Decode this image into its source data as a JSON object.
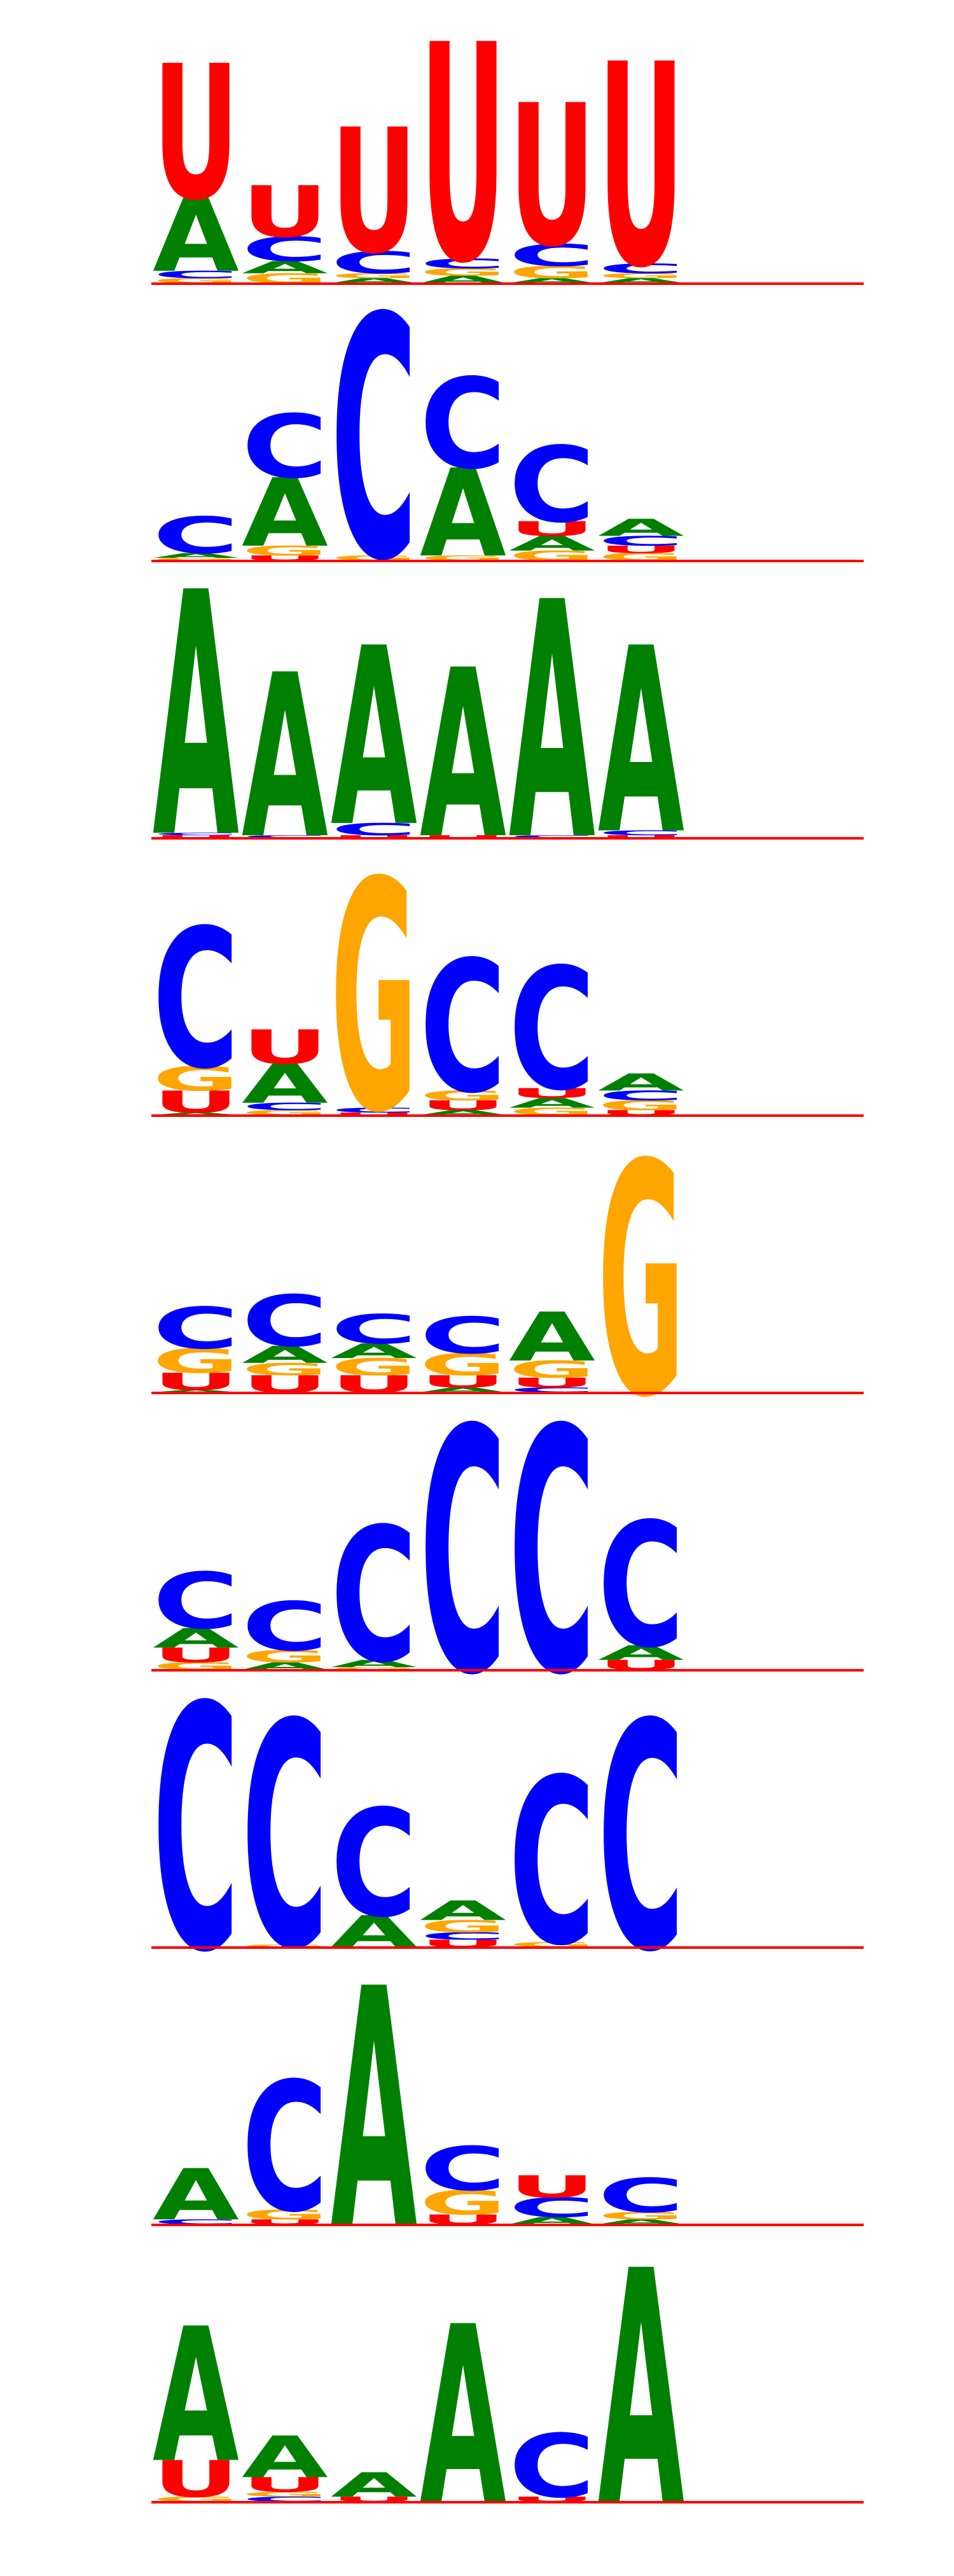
{
  "colors": {
    "A": "#008000",
    "C": "#0000FF",
    "G": "#FFA500",
    "U": "#FF0000",
    "baseline": "#FF0000"
  },
  "logos": [
    {
      "columns": [
        [
          [
            "G",
            0.02
          ],
          [
            "C",
            0.03
          ],
          [
            "A",
            0.3
          ],
          [
            "U",
            0.55
          ]
        ],
        [
          [
            "G",
            0.04
          ],
          [
            "A",
            0.05
          ],
          [
            "C",
            0.1
          ],
          [
            "U",
            0.21
          ]
        ],
        [
          [
            "A",
            0.02
          ],
          [
            "G",
            0.02
          ],
          [
            "C",
            0.09
          ],
          [
            "U",
            0.51
          ]
        ],
        [
          [
            "A",
            0.03
          ],
          [
            "G",
            0.03
          ],
          [
            "C",
            0.04
          ],
          [
            "U",
            0.89
          ]
        ],
        [
          [
            "A",
            0.02
          ],
          [
            "G",
            0.05
          ],
          [
            "C",
            0.09
          ],
          [
            "U",
            0.58
          ]
        ],
        [
          [
            "A",
            0.02
          ],
          [
            "G",
            0.02
          ],
          [
            "C",
            0.04
          ],
          [
            "U",
            0.83
          ]
        ]
      ]
    },
    {
      "columns": [
        [
          [
            "G",
            0.01
          ],
          [
            "A",
            0.02
          ],
          [
            "C",
            0.15
          ]
        ],
        [
          [
            "U",
            0.02
          ],
          [
            "G",
            0.04
          ],
          [
            "A",
            0.28
          ],
          [
            "C",
            0.26
          ]
        ],
        [
          [
            "G",
            0.02
          ],
          [
            "C",
            0.99
          ]
        ],
        [
          [
            "G",
            0.02
          ],
          [
            "A",
            0.36
          ],
          [
            "C",
            0.37
          ]
        ],
        [
          [
            "G",
            0.04
          ],
          [
            "A",
            0.06
          ],
          [
            "U",
            0.06
          ],
          [
            "C",
            0.31
          ]
        ],
        [
          [
            "G",
            0.03
          ],
          [
            "U",
            0.03
          ],
          [
            "C",
            0.04
          ],
          [
            "A",
            0.07
          ]
        ]
      ]
    },
    {
      "columns": [
        [
          [
            "U",
            0.01
          ],
          [
            "C",
            0.01
          ],
          [
            "A",
            1.0
          ]
        ],
        [
          [
            "C",
            0.01
          ],
          [
            "A",
            0.67
          ]
        ],
        [
          [
            "U",
            0.01
          ],
          [
            "C",
            0.05
          ],
          [
            "A",
            0.73
          ]
        ],
        [
          [
            "U",
            0.01
          ],
          [
            "A",
            0.69
          ]
        ],
        [
          [
            "C",
            0.01
          ],
          [
            "A",
            0.97
          ]
        ],
        [
          [
            "U",
            0.01
          ],
          [
            "C",
            0.02
          ],
          [
            "A",
            0.76
          ]
        ]
      ]
    },
    {
      "columns": [
        [
          [
            "A",
            0.01
          ],
          [
            "U",
            0.09
          ],
          [
            "G",
            0.1
          ],
          [
            "C",
            0.57
          ]
        ],
        [
          [
            "G",
            0.02
          ],
          [
            "C",
            0.03
          ],
          [
            "A",
            0.16
          ],
          [
            "U",
            0.14
          ]
        ],
        [
          [
            "U",
            0.01
          ],
          [
            "C",
            0.02
          ],
          [
            "G",
            0.94
          ]
        ],
        [
          [
            "A",
            0.02
          ],
          [
            "U",
            0.04
          ],
          [
            "G",
            0.04
          ],
          [
            "C",
            0.54
          ]
        ],
        [
          [
            "G",
            0.03
          ],
          [
            "A",
            0.04
          ],
          [
            "U",
            0.04
          ],
          [
            "C",
            0.5
          ]
        ],
        [
          [
            "U",
            0.02
          ],
          [
            "G",
            0.04
          ],
          [
            "C",
            0.04
          ],
          [
            "A",
            0.07
          ]
        ]
      ]
    },
    {
      "columns": [
        [
          [
            "A",
            0.01
          ],
          [
            "U",
            0.07
          ],
          [
            "G",
            0.1
          ],
          [
            "C",
            0.17
          ]
        ],
        [
          [
            "U",
            0.07
          ],
          [
            "G",
            0.05
          ],
          [
            "A",
            0.07
          ],
          [
            "C",
            0.21
          ]
        ],
        [
          [
            "U",
            0.07
          ],
          [
            "G",
            0.07
          ],
          [
            "A",
            0.06
          ],
          [
            "C",
            0.12
          ]
        ],
        [
          [
            "A",
            0.02
          ],
          [
            "U",
            0.05
          ],
          [
            "G",
            0.09
          ],
          [
            "C",
            0.15
          ]
        ],
        [
          [
            "C",
            0.02
          ],
          [
            "U",
            0.04
          ],
          [
            "G",
            0.07
          ],
          [
            "A",
            0.2
          ]
        ],
        [
          [
            "G",
            0.95
          ]
        ]
      ]
    },
    {
      "columns": [
        [
          [
            "G",
            0.03
          ],
          [
            "U",
            0.06
          ],
          [
            "A",
            0.08
          ],
          [
            "C",
            0.23
          ]
        ],
        [
          [
            "A",
            0.03
          ],
          [
            "G",
            0.05
          ],
          [
            "C",
            0.2
          ]
        ],
        [
          [
            "G",
            0.01
          ],
          [
            "A",
            0.03
          ],
          [
            "C",
            0.55
          ]
        ],
        [
          [
            "C",
            1.0
          ]
        ],
        [
          [
            "C",
            1.0
          ]
        ],
        [
          [
            "U",
            0.04
          ],
          [
            "A",
            0.06
          ],
          [
            "C",
            0.51
          ]
        ]
      ]
    },
    {
      "columns": [
        [
          [
            "C",
            1.0
          ]
        ],
        [
          [
            "G",
            0.01
          ],
          [
            "C",
            0.92
          ]
        ],
        [
          [
            "A",
            0.13
          ],
          [
            "C",
            0.44
          ]
        ],
        [
          [
            "U",
            0.03
          ],
          [
            "C",
            0.03
          ],
          [
            "G",
            0.05
          ],
          [
            "A",
            0.08
          ]
        ],
        [
          [
            "G",
            0.02
          ],
          [
            "C",
            0.68
          ]
        ],
        [
          [
            "C",
            0.93
          ]
        ]
      ]
    },
    {
      "columns": [
        [
          [
            "C",
            0.02
          ],
          [
            "A",
            0.21
          ]
        ],
        [
          [
            "U",
            0.02
          ],
          [
            "G",
            0.04
          ],
          [
            "C",
            0.53
          ]
        ],
        [
          [
            "A",
            0.98
          ]
        ],
        [
          [
            "U",
            0.04
          ],
          [
            "G",
            0.1
          ],
          [
            "C",
            0.18
          ]
        ],
        [
          [
            "A",
            0.03
          ],
          [
            "C",
            0.08
          ],
          [
            "U",
            0.09
          ]
        ],
        [
          [
            "A",
            0.02
          ],
          [
            "G",
            0.03
          ],
          [
            "C",
            0.14
          ]
        ]
      ]
    },
    {
      "columns": [
        [
          [
            "G",
            0.02
          ],
          [
            "U",
            0.15
          ],
          [
            "A",
            0.55
          ]
        ],
        [
          [
            "C",
            0.02
          ],
          [
            "G",
            0.02
          ],
          [
            "U",
            0.06
          ],
          [
            "A",
            0.17
          ]
        ],
        [
          [
            "U",
            0.02
          ],
          [
            "A",
            0.1
          ]
        ],
        [
          [
            "A",
            0.73
          ]
        ],
        [
          [
            "U",
            0.02
          ],
          [
            "C",
            0.26
          ]
        ],
        [
          [
            "A",
            0.96
          ]
        ]
      ]
    }
  ]
}
